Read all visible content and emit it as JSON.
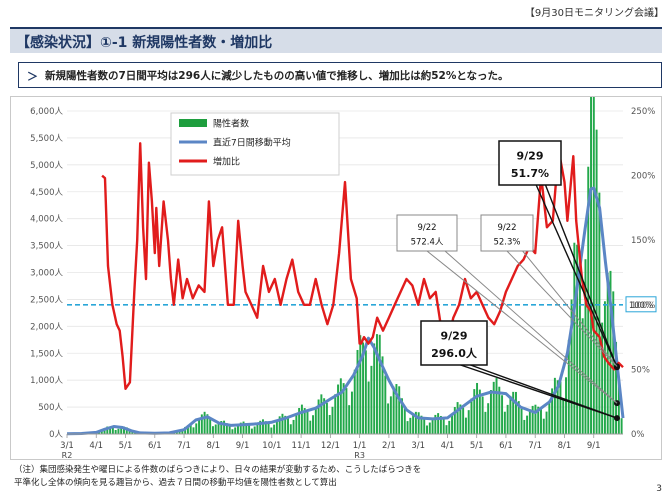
{
  "meeting_tag": "【9月30日モニタリング会議】",
  "header": {
    "title": "【感染状況】①-1 新規陽性者数・増加比"
  },
  "summary": {
    "arrow": "＞",
    "text": "新規陽性者数の7日間平均は296人に減少したものの高い値で推移し、増加比は約52%となった。"
  },
  "note": {
    "line1": "（注）集団感染発生や曜日による件数のばらつきにより、日々の結果が変動するため、こうしたばらつきを",
    "line2": "平準化し全体の傾向を見る趣旨から、過去７日間の移動平均値を陽性者数として算出"
  },
  "page_number": "3",
  "chart_data": {
    "type": "bar",
    "title": "",
    "xlabel": "",
    "ylabel": "",
    "ylim": [
      0,
      6000
    ],
    "y2lim": [
      0,
      250
    ],
    "x_ticks": [
      "3/1",
      "4/1",
      "5/1",
      "6/1",
      "7/1",
      "8/1",
      "9/1",
      "10/1",
      "11/1",
      "12/1",
      "1/1",
      "2/1",
      "3/1",
      "4/1",
      "5/1",
      "6/1",
      "7/1",
      "8/1",
      "9/1"
    ],
    "x_year_labels": [
      {
        "at": "3/1",
        "label": "R2"
      },
      {
        "at": "1/1",
        "label": "R3"
      }
    ],
    "y_ticks": [
      "0人",
      "500人",
      "1,000人",
      "1,500人",
      "2,000人",
      "2,500人",
      "3,000人",
      "3,500人",
      "4,000人",
      "4,500人",
      "5,000人",
      "5,500人",
      "6,000人"
    ],
    "y2_ticks": [
      "0%",
      "50%",
      "100%",
      "150%",
      "200%",
      "250%"
    ],
    "reference_line": {
      "value": 100,
      "label": "100%",
      "axis": "right"
    },
    "legend": [
      {
        "name": "陽性者数",
        "color": "#1e9e3e",
        "kind": "bar"
      },
      {
        "name": "直近7日間移動平均",
        "color": "#5b86c5",
        "kind": "line"
      },
      {
        "name": "増加比",
        "color": "#e11c1c",
        "kind": "line"
      }
    ],
    "series": [
      {
        "name": "直近7日間移動平均",
        "axis": "left",
        "x": [
          0,
          0.5,
          1,
          1.3,
          1.6,
          1.9,
          2.2,
          2.5,
          3,
          3.5,
          4,
          4.4,
          4.8,
          5.2,
          5.6,
          6,
          6.5,
          7,
          7.5,
          8,
          8.5,
          9,
          9.4,
          9.8,
          10.1,
          10.3,
          10.5,
          10.7,
          11,
          11.3,
          11.6,
          12,
          12.5,
          13,
          13.5,
          14,
          14.5,
          15,
          15.5,
          16,
          16.5,
          16.8,
          17.1,
          17.3,
          17.5,
          17.7,
          17.9,
          18,
          18.2,
          18.4,
          18.6,
          18.8,
          19
        ],
        "y": [
          5,
          10,
          30,
          90,
          140,
          120,
          60,
          20,
          15,
          20,
          80,
          260,
          320,
          200,
          160,
          170,
          190,
          220,
          300,
          400,
          480,
          650,
          780,
          1100,
          1450,
          1780,
          1600,
          1350,
          1000,
          700,
          450,
          300,
          280,
          300,
          500,
          700,
          780,
          750,
          500,
          400,
          600,
          900,
          1500,
          2200,
          3000,
          3800,
          4550,
          4570,
          4200,
          3200,
          2300,
          1300,
          296
        ]
      },
      {
        "name": "増加比",
        "axis": "right",
        "x": [
          1.2,
          1.3,
          1.4,
          1.55,
          1.7,
          1.8,
          1.9,
          2.0,
          2.15,
          2.3,
          2.4,
          2.5,
          2.6,
          2.7,
          2.8,
          2.9,
          3.0,
          3.05,
          3.15,
          3.3,
          3.45,
          3.55,
          3.65,
          3.8,
          3.95,
          4.1,
          4.3,
          4.5,
          4.7,
          4.85,
          5.0,
          5.15,
          5.3,
          5.5,
          5.7,
          5.85,
          6.0,
          6.1,
          6.3,
          6.5,
          6.7,
          6.9,
          7.1,
          7.3,
          7.5,
          7.7,
          7.9,
          8.1,
          8.3,
          8.5,
          8.7,
          8.9,
          9.1,
          9.3,
          9.5,
          9.7,
          9.9,
          10.0,
          10.05,
          10.15,
          10.3,
          10.45,
          10.6,
          10.8,
          11.0,
          11.2,
          11.4,
          11.6,
          11.8,
          12.0,
          12.2,
          12.4,
          12.6,
          12.8,
          13.0,
          13.2,
          13.4,
          13.6,
          13.8,
          14.0,
          14.2,
          14.4,
          14.6,
          14.8,
          15.0,
          15.2,
          15.4,
          15.6,
          15.8,
          16.0,
          16.2,
          16.4,
          16.6,
          16.8,
          17.0,
          17.1,
          17.3,
          17.4,
          17.6,
          17.75,
          17.9,
          18.0,
          18.2,
          18.35,
          18.5,
          18.7,
          18.85,
          19.0
        ],
        "y": [
          200,
          198,
          130,
          100,
          85,
          80,
          60,
          35,
          40,
          110,
          150,
          225,
          160,
          120,
          210,
          180,
          140,
          175,
          130,
          180,
          150,
          120,
          100,
          135,
          105,
          120,
          105,
          115,
          110,
          180,
          130,
          150,
          160,
          100,
          100,
          165,
          130,
          110,
          100,
          90,
          130,
          110,
          120,
          100,
          120,
          135,
          110,
          100,
          100,
          120,
          100,
          85,
          100,
          140,
          195,
          120,
          105,
          70,
          70,
          75,
          70,
          75,
          90,
          80,
          90,
          100,
          110,
          120,
          115,
          100,
          120,
          105,
          110,
          80,
          70,
          90,
          100,
          120,
          105,
          110,
          100,
          90,
          85,
          95,
          110,
          120,
          130,
          135,
          145,
          140,
          200,
          160,
          165,
          220,
          195,
          165,
          215,
          165,
          120,
          100,
          95,
          80,
          75,
          60,
          55,
          50,
          55,
          51.7
        ]
      }
    ],
    "annotations": [
      {
        "date": "9/29",
        "value": "51.7%",
        "series": "増加比"
      },
      {
        "date": "9/22",
        "value": "572.4人",
        "series": "直近7日間移動平均"
      },
      {
        "date": "9/22",
        "value": "52.3%",
        "series": "増加比"
      },
      {
        "date": "9/29",
        "value": "296.0人",
        "series": "直近7日間移動平均"
      }
    ]
  }
}
